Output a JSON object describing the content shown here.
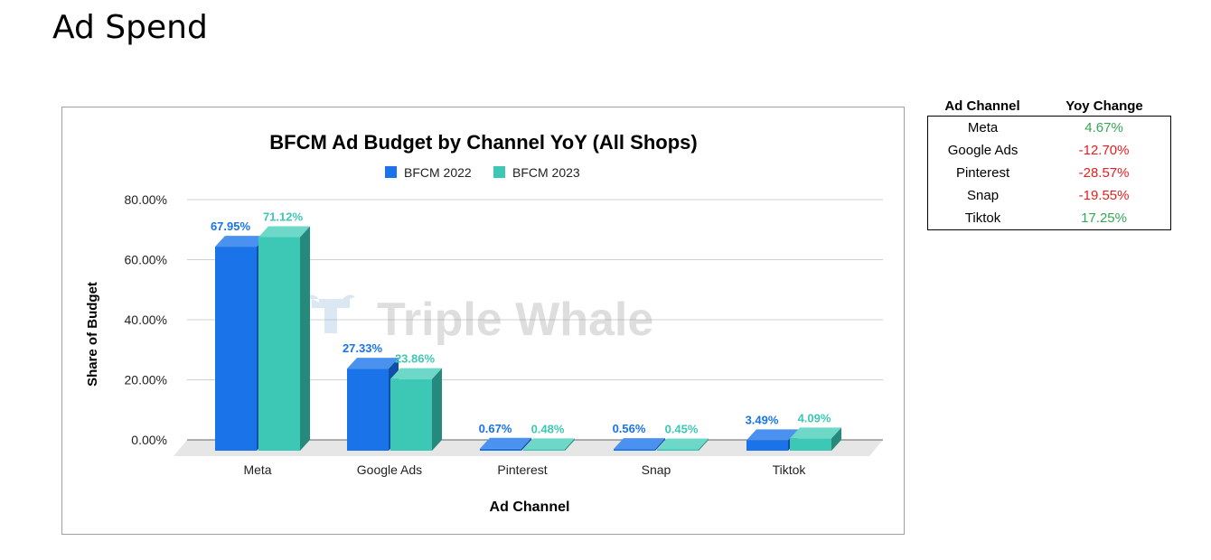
{
  "page": {
    "title": "Ad Spend"
  },
  "chart_data": {
    "type": "bar",
    "title": "BFCM Ad Budget by Channel YoY (All Shops)",
    "xlabel": "Ad Channel",
    "ylabel": "Share of Budget",
    "categories": [
      "Meta",
      "Google Ads",
      "Pinterest",
      "Snap",
      "Tiktok"
    ],
    "series": [
      {
        "name": "BFCM 2022",
        "values": [
          67.95,
          27.33,
          0.67,
          0.56,
          3.49
        ],
        "labels": [
          "67.95%",
          "27.33%",
          "0.67%",
          "0.56%",
          "3.49%"
        ]
      },
      {
        "name": "BFCM 2023",
        "values": [
          71.12,
          23.86,
          0.48,
          0.45,
          4.09
        ],
        "labels": [
          "71.12%",
          "23.86%",
          "0.48%",
          "0.45%",
          "4.09%"
        ]
      }
    ],
    "ylim": [
      0,
      80
    ],
    "yticks": [
      "0.00%",
      "20.00%",
      "40.00%",
      "60.00%",
      "80.00%"
    ],
    "grid": true,
    "legend_position": "top",
    "watermark": "Triple Whale",
    "colors": {
      "BFCM 2022": "#1a73e8",
      "BFCM 2023": "#3cc8b4"
    }
  },
  "yoy_table": {
    "headers": [
      "Ad Channel",
      "Yoy Change"
    ],
    "rows": [
      {
        "channel": "Meta",
        "change": "4.67%",
        "sign": "pos"
      },
      {
        "channel": "Google Ads",
        "change": "-12.70%",
        "sign": "neg"
      },
      {
        "channel": "Pinterest",
        "change": "-28.57%",
        "sign": "neg"
      },
      {
        "channel": "Snap",
        "change": "-19.55%",
        "sign": "neg"
      },
      {
        "channel": "Tiktok",
        "change": "17.25%",
        "sign": "pos"
      }
    ],
    "colors": {
      "pos": "#34a853",
      "neg": "#ea1c1c"
    }
  }
}
